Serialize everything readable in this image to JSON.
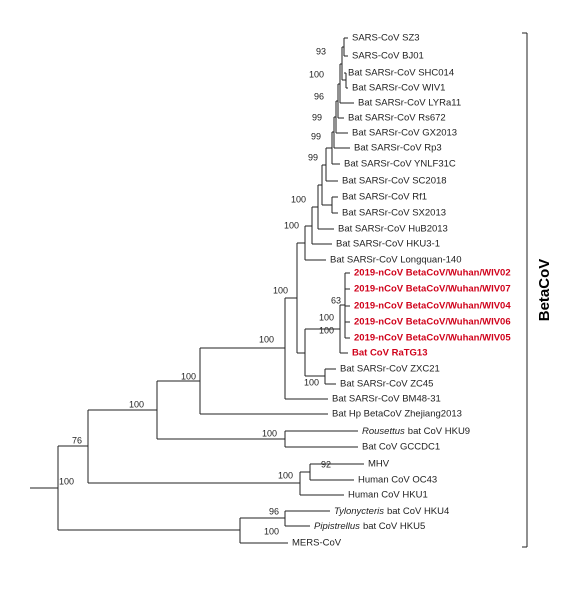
{
  "tree": {
    "clade_label": "BetaCoV",
    "leaves": [
      {
        "label": "SARS-CoV SZ3"
      },
      {
        "label": "SARS-CoV BJ01"
      },
      {
        "label": "Bat SARSr-CoV SHC014"
      },
      {
        "label": "Bat SARSr-CoV WIV1"
      },
      {
        "label": "Bat SARSr-CoV LYRa11"
      },
      {
        "label": "Bat SARSr-CoV Rs672"
      },
      {
        "label": "Bat SARSr-CoV GX2013"
      },
      {
        "label": "Bat SARSr-CoV Rp3"
      },
      {
        "label": "Bat SARSr-CoV YNLF31C"
      },
      {
        "label": "Bat SARSr-CoV SC2018"
      },
      {
        "label": "Bat SARSr-CoV Rf1"
      },
      {
        "label": "Bat SARSr-CoV SX2013"
      },
      {
        "label": "Bat SARSr-CoV HuB2013"
      },
      {
        "label": "Bat SARSr-CoV HKU3-1"
      },
      {
        "label": "Bat SARSr-CoV Longquan-140"
      },
      {
        "label": "2019-nCoV BetaCoV/Wuhan/WIV02",
        "highlight": true
      },
      {
        "label": "2019-nCoV BetaCoV/Wuhan/WIV07",
        "highlight": true
      },
      {
        "label": "2019-nCoV BetaCoV/Wuhan/WIV04",
        "highlight": true
      },
      {
        "label": "2019-nCoV BetaCoV/Wuhan/WIV06",
        "highlight": true
      },
      {
        "label": "2019-nCoV BetaCoV/Wuhan/WIV05",
        "highlight": true
      },
      {
        "label": "Bat CoV RaTG13",
        "highlight": true
      },
      {
        "label": "Bat SARSr-CoV ZXC21"
      },
      {
        "label": "Bat SARSr-CoV ZC45"
      },
      {
        "label": "Bat SARSr-CoV BM48-31"
      },
      {
        "label": "Bat Hp BetaCoV Zhejiang2013"
      },
      {
        "italic": "Rousettus",
        "label": "bat CoV HKU9"
      },
      {
        "label": "Bat CoV GCCDC1"
      },
      {
        "label": "MHV"
      },
      {
        "label": "Human CoV OC43"
      },
      {
        "label": "Human CoV HKU1"
      },
      {
        "italic": "Tylonycteris",
        "label": "bat CoV HKU4"
      },
      {
        "italic": "Pipistrellus",
        "label": "bat CoV HKU5"
      },
      {
        "label": "MERS-CoV"
      }
    ],
    "bootstrap": [
      93,
      100,
      96,
      99,
      99,
      99,
      100,
      100,
      100,
      63,
      100,
      100,
      100,
      100,
      100,
      100,
      76,
      100,
      100,
      92,
      100,
      96,
      100
    ]
  }
}
